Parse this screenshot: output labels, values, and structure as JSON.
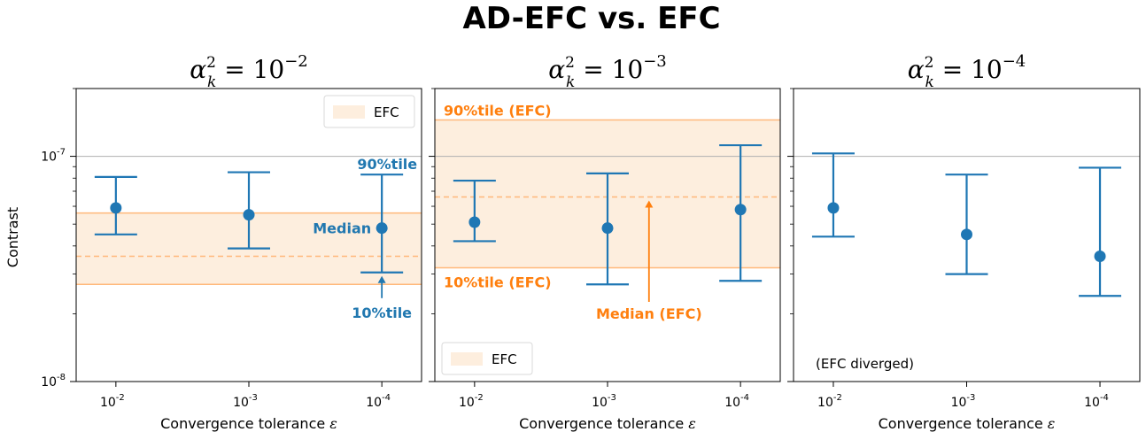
{
  "figure": {
    "title": "AD-EFC vs. EFC",
    "ylabel": "Contrast",
    "xlabel": "Convergence tolerance ε"
  },
  "colors": {
    "marker": "#1f77b4",
    "efc": "#ff7f0e",
    "band": "#fdeede",
    "band_edge": "#ffb87a",
    "grid": "#b0b0b0",
    "axis": "#000000"
  },
  "y_ticks": {
    "major": [
      {
        "value": 1e-07,
        "base": "10",
        "exp": "-7"
      },
      {
        "value": 1e-08,
        "base": "10",
        "exp": "-8"
      }
    ],
    "minor": [
      2e-08,
      3e-08,
      4e-08,
      5e-08,
      6e-08,
      7e-08,
      8e-08,
      9e-08,
      2e-07
    ]
  },
  "x_ticks": [
    {
      "base": "10",
      "exp": "-2"
    },
    {
      "base": "10",
      "exp": "-3"
    },
    {
      "base": "10",
      "exp": "-4"
    }
  ],
  "chart_data": [
    {
      "type": "scatter",
      "title": "α_k² = 10^-2",
      "title_parts": {
        "symbol": "α",
        "sub": "k",
        "sup": "2",
        "eq": "= 10",
        "exp": "−2"
      },
      "y_scale": "log",
      "ylim": [
        1e-08,
        2e-07
      ],
      "xlabel": "Convergence tolerance ε",
      "ylabel": "Contrast",
      "categories": [
        "10^-2",
        "10^-3",
        "10^-4"
      ],
      "series": [
        {
          "name": "AD-EFC",
          "median": [
            5.9e-08,
            5.5e-08,
            4.8e-08
          ],
          "p10": [
            4.5e-08,
            3.9e-08,
            3.05e-08
          ],
          "p90": [
            8.1e-08,
            8.5e-08,
            8.3e-08
          ]
        }
      ],
      "efc_band": {
        "p10": 2.7e-08,
        "median": 3.6e-08,
        "p90": 5.6e-08
      },
      "legend": {
        "label": "EFC",
        "position": "top-right"
      },
      "annotations": [
        {
          "text": "90%tile",
          "target": "p90",
          "index": 2
        },
        {
          "text": "Median",
          "target": "median",
          "index": 2
        },
        {
          "text": "10%tile",
          "target": "p10",
          "index": 2
        }
      ],
      "grid": "horizontal line at 10^-7"
    },
    {
      "type": "scatter",
      "title": "α_k² = 10^-3",
      "title_parts": {
        "symbol": "α",
        "sub": "k",
        "sup": "2",
        "eq": "= 10",
        "exp": "−3"
      },
      "y_scale": "log",
      "ylim": [
        1e-08,
        2e-07
      ],
      "xlabel": "Convergence tolerance ε",
      "categories": [
        "10^-2",
        "10^-3",
        "10^-4"
      ],
      "series": [
        {
          "name": "AD-EFC",
          "median": [
            5.1e-08,
            4.8e-08,
            5.8e-08
          ],
          "p10": [
            4.2e-08,
            2.7e-08,
            2.8e-08
          ],
          "p90": [
            7.8e-08,
            8.4e-08,
            1.12e-07
          ]
        }
      ],
      "efc_band": {
        "p10": 3.2e-08,
        "median": 6.6e-08,
        "p90": 1.45e-07
      },
      "legend": {
        "label": "EFC",
        "position": "bottom-left"
      },
      "annotations": [
        {
          "text": "90%tile (EFC)",
          "target": "band_p90"
        },
        {
          "text": "10%tile (EFC)",
          "target": "band_p10"
        },
        {
          "text": "Median (EFC)",
          "target": "band_median"
        }
      ],
      "grid": "horizontal line at 10^-7"
    },
    {
      "type": "scatter",
      "title": "α_k² = 10^-4",
      "title_parts": {
        "symbol": "α",
        "sub": "k",
        "sup": "2",
        "eq": "= 10",
        "exp": "−4"
      },
      "y_scale": "log",
      "ylim": [
        1e-08,
        2e-07
      ],
      "xlabel": "Convergence tolerance ε",
      "categories": [
        "10^-2",
        "10^-3",
        "10^-4"
      ],
      "series": [
        {
          "name": "AD-EFC",
          "median": [
            5.9e-08,
            4.5e-08,
            3.6e-08
          ],
          "p10": [
            4.4e-08,
            3e-08,
            2.4e-08
          ],
          "p90": [
            1.03e-07,
            8.3e-08,
            8.9e-08
          ]
        }
      ],
      "efc_band": null,
      "note": "(EFC diverged)",
      "grid": "horizontal line at 10^-7"
    }
  ]
}
